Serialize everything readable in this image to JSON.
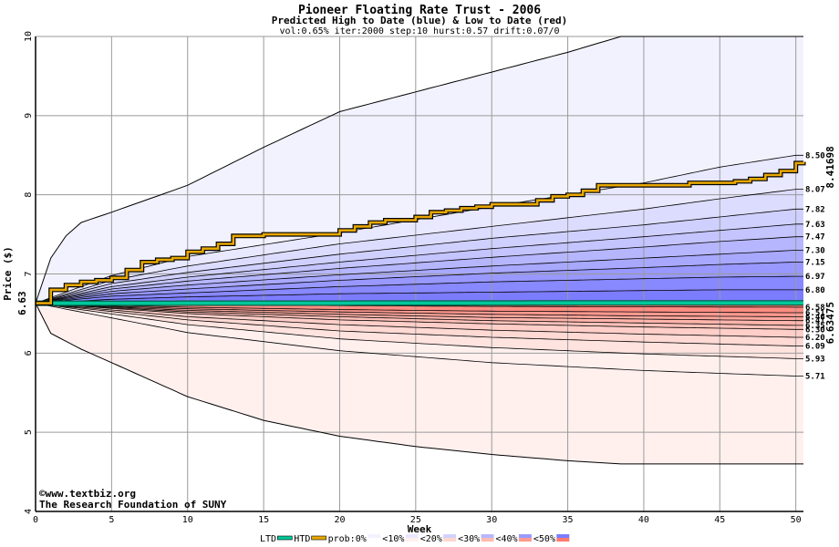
{
  "chart_data": {
    "type": "area",
    "title": "Pioneer Floating Rate Trust - 2006",
    "subtitle": "Predicted High to Date (blue) &  Low to Date (red)",
    "params": "vol:0.65% iter:2000 step:10 hurst:0.57 drift:0.07/0",
    "xlabel": "Week",
    "ylabel": "Price ($)",
    "xlim": [
      0,
      50.5
    ],
    "ylim": [
      4,
      10
    ],
    "xticks": [
      0,
      5,
      10,
      15,
      20,
      25,
      30,
      35,
      40,
      45,
      50
    ],
    "yticks": [
      4,
      5,
      6,
      7,
      8,
      9,
      10
    ],
    "grid": true,
    "start_price": 6.63,
    "start_label": "6.63",
    "credit": [
      "©www.textbiz.org",
      "The Research Foundation of SUNY"
    ],
    "high_labels": [
      "8.50",
      "8.07",
      "7.82",
      "7.63",
      "7.47",
      "7.30",
      "7.15",
      "6.97",
      "6.80"
    ],
    "low_labels": [
      "6.58",
      "6.51",
      "6.46",
      "6.41",
      "6.35",
      "6.30",
      "6.20",
      "6.09",
      "5.93",
      "5.71"
    ],
    "outer_envelope": {
      "x": [
        0,
        1,
        2,
        3,
        5,
        10,
        15,
        20,
        25,
        30,
        35,
        38.5,
        40,
        45,
        50
      ],
      "upper": [
        6.63,
        7.2,
        7.48,
        7.65,
        7.78,
        8.12,
        8.6,
        9.05,
        9.3,
        9.55,
        9.8,
        10.0,
        10.0,
        10.0,
        10.0
      ],
      "lower": [
        6.63,
        6.25,
        6.15,
        6.05,
        5.88,
        5.45,
        5.15,
        4.95,
        4.82,
        4.72,
        4.64,
        4.6,
        4.6,
        4.6,
        4.6
      ]
    },
    "high_bands": [
      {
        "label": "8.50",
        "x": [
          0,
          5,
          10,
          20,
          30,
          40,
          45,
          50
        ],
        "y": [
          6.63,
          6.98,
          7.22,
          7.52,
          7.85,
          8.15,
          8.35,
          8.5
        ]
      },
      {
        "label": "8.07",
        "x": [
          0,
          5,
          10,
          20,
          30,
          40,
          45,
          50
        ],
        "y": [
          6.63,
          6.92,
          7.1,
          7.38,
          7.6,
          7.82,
          7.95,
          8.07
        ]
      },
      {
        "label": "7.82",
        "x": [
          0,
          5,
          10,
          20,
          30,
          40,
          45,
          50
        ],
        "y": [
          6.63,
          6.88,
          7.02,
          7.25,
          7.45,
          7.62,
          7.72,
          7.82
        ]
      },
      {
        "label": "7.63",
        "x": [
          0,
          5,
          10,
          20,
          30,
          40,
          45,
          50
        ],
        "y": [
          6.63,
          6.84,
          6.96,
          7.15,
          7.32,
          7.47,
          7.55,
          7.63
        ]
      },
      {
        "label": "7.47",
        "x": [
          0,
          5,
          10,
          20,
          30,
          40,
          45,
          50
        ],
        "y": [
          6.63,
          6.81,
          6.91,
          7.07,
          7.21,
          7.34,
          7.41,
          7.47
        ]
      },
      {
        "label": "7.30",
        "x": [
          0,
          5,
          10,
          20,
          30,
          40,
          45,
          50
        ],
        "y": [
          6.63,
          6.78,
          6.86,
          6.99,
          7.1,
          7.2,
          7.25,
          7.3
        ]
      },
      {
        "label": "7.15",
        "x": [
          0,
          5,
          10,
          20,
          30,
          40,
          45,
          50
        ],
        "y": [
          6.63,
          6.75,
          6.81,
          6.92,
          7.01,
          7.08,
          7.12,
          7.15
        ]
      },
      {
        "label": "6.97",
        "x": [
          0,
          5,
          10,
          20,
          30,
          40,
          45,
          50
        ],
        "y": [
          6.63,
          6.72,
          6.76,
          6.84,
          6.9,
          6.94,
          6.96,
          6.97
        ]
      },
      {
        "label": "6.80",
        "x": [
          0,
          5,
          10,
          20,
          30,
          40,
          45,
          50
        ],
        "y": [
          6.63,
          6.68,
          6.71,
          6.75,
          6.77,
          6.79,
          6.8,
          6.8
        ]
      }
    ],
    "low_bands": [
      {
        "label": "6.58",
        "x": [
          0,
          10,
          20,
          30,
          40,
          50
        ],
        "y": [
          6.63,
          6.61,
          6.6,
          6.59,
          6.585,
          6.58
        ]
      },
      {
        "label": "6.51",
        "x": [
          0,
          10,
          20,
          30,
          40,
          50
        ],
        "y": [
          6.63,
          6.58,
          6.55,
          6.53,
          6.52,
          6.51
        ]
      },
      {
        "label": "6.46",
        "x": [
          0,
          10,
          20,
          30,
          40,
          50
        ],
        "y": [
          6.63,
          6.56,
          6.52,
          6.49,
          6.47,
          6.46
        ]
      },
      {
        "label": "6.41",
        "x": [
          0,
          10,
          20,
          30,
          40,
          50
        ],
        "y": [
          6.63,
          6.54,
          6.49,
          6.45,
          6.43,
          6.41
        ]
      },
      {
        "label": "6.35",
        "x": [
          0,
          10,
          20,
          30,
          40,
          50
        ],
        "y": [
          6.63,
          6.52,
          6.46,
          6.41,
          6.38,
          6.35
        ]
      },
      {
        "label": "6.30",
        "x": [
          0,
          10,
          20,
          30,
          40,
          50
        ],
        "y": [
          6.63,
          6.5,
          6.42,
          6.37,
          6.33,
          6.3
        ]
      },
      {
        "label": "6.20",
        "x": [
          0,
          10,
          20,
          30,
          40,
          50
        ],
        "y": [
          6.63,
          6.46,
          6.36,
          6.29,
          6.24,
          6.2
        ]
      },
      {
        "label": "6.09",
        "x": [
          0,
          10,
          20,
          30,
          40,
          50
        ],
        "y": [
          6.63,
          6.42,
          6.28,
          6.2,
          6.14,
          6.09
        ]
      },
      {
        "label": "5.93",
        "x": [
          0,
          10,
          20,
          30,
          40,
          50
        ],
        "y": [
          6.63,
          6.36,
          6.18,
          6.07,
          5.99,
          5.93
        ]
      },
      {
        "label": "5.71",
        "x": [
          0,
          10,
          20,
          30,
          40,
          50
        ],
        "y": [
          6.63,
          6.26,
          6.03,
          5.88,
          5.78,
          5.71
        ]
      }
    ],
    "htd_series": {
      "name": "HTD",
      "last_label": "8.41698",
      "x": [
        0,
        1,
        2,
        3,
        4,
        5,
        6,
        7,
        8,
        9,
        10,
        11,
        12,
        13,
        15,
        20,
        21,
        22,
        23,
        25,
        26,
        27,
        28,
        29,
        30,
        32,
        33,
        34,
        35,
        36,
        37,
        40,
        43,
        45,
        46,
        47,
        48,
        49,
        50,
        50.5
      ],
      "y": [
        6.63,
        6.8,
        6.86,
        6.9,
        6.92,
        6.95,
        7.05,
        7.15,
        7.18,
        7.2,
        7.28,
        7.32,
        7.38,
        7.48,
        7.5,
        7.55,
        7.6,
        7.65,
        7.68,
        7.72,
        7.78,
        7.8,
        7.83,
        7.85,
        7.88,
        7.88,
        7.93,
        7.98,
        8.0,
        8.05,
        8.12,
        8.12,
        8.15,
        8.15,
        8.17,
        8.2,
        8.25,
        8.3,
        8.4,
        8.417
      ]
    },
    "ltd_series": {
      "name": "LTD",
      "last_label": "6.63475",
      "x": [
        0,
        50.5
      ],
      "y": [
        6.63,
        6.635
      ]
    },
    "legend": {
      "placement": "bottom",
      "items": [
        {
          "label": "LTD",
          "swatch": "line",
          "color": "#00c89b"
        },
        {
          "label": "HTD",
          "swatch": "line",
          "color": "#e8a800"
        },
        {
          "label": "prob:0%",
          "swatch": "box",
          "colors": [
            "#ffffff",
            "#f2f2ff"
          ]
        },
        {
          "label": "<10%",
          "swatch": "box",
          "colors": [
            "#fff0ee",
            "#e8e8ff"
          ]
        },
        {
          "label": "<20%",
          "swatch": "box",
          "colors": [
            "#ffd6d0",
            "#d2d2ff"
          ]
        },
        {
          "label": "<30%",
          "swatch": "box",
          "colors": [
            "#ffbbb0",
            "#b8b8ff"
          ]
        },
        {
          "label": "<40%",
          "swatch": "box",
          "colors": [
            "#ff9a90",
            "#9a9aff"
          ]
        },
        {
          "label": "<50%",
          "swatch": "box",
          "colors": [
            "#ff7a70",
            "#7c7cff"
          ]
        }
      ]
    },
    "colors": {
      "grid": "#9a9a9a",
      "htd": "#e8a800",
      "ltd": "#00c89b",
      "htd_label": "#b07a00",
      "ltd_label": "#00805f",
      "start_label": "#3a6000",
      "credit": "#00007a",
      "outer_high": "#f2f2ff",
      "outer_low": "#fff0ee",
      "high_fills": [
        "#e8e8ff",
        "#dcdcff",
        "#d0d0ff",
        "#c4c4ff",
        "#b6b6ff",
        "#a8a8ff",
        "#9898ff",
        "#8888ff",
        "#7c7cff"
      ],
      "low_fills": [
        "#ff7a70",
        "#ff8c82",
        "#ff9a90",
        "#ffa89e",
        "#ffb5ac",
        "#ffc2ba",
        "#ffcec8",
        "#ffd9d4",
        "#ffe3df",
        "#fff0ee"
      ]
    }
  }
}
